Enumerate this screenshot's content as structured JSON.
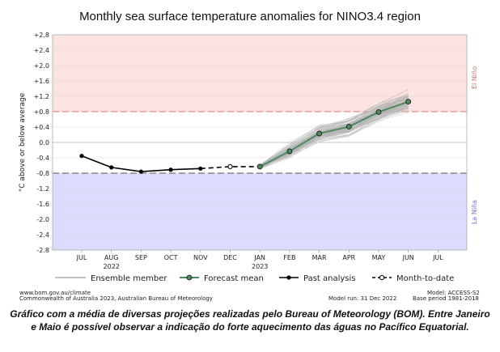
{
  "chart_data": {
    "type": "line",
    "title": "Monthly sea surface temperature anomalies for NINO3.4 region",
    "ylabel": "°C above or below average",
    "ylim": [
      -2.8,
      2.8
    ],
    "y_ticks": [
      "+2.8",
      "+2.4",
      "+2.0",
      "+1.6",
      "+1.2",
      "+0.8",
      "+0.4",
      "0.0",
      "-0.4",
      "-0.8",
      "-1.2",
      "-1.6",
      "-2.0",
      "-2.4",
      "-2.8"
    ],
    "x_ticks": [
      "JUL",
      "AUG",
      "SEP",
      "OCT",
      "NOV",
      "DEC",
      "JAN",
      "FEB",
      "MAR",
      "APR",
      "MAY",
      "JUN",
      "JUL"
    ],
    "x_year_labels": [
      {
        "month": "AUG",
        "label": "2022"
      },
      {
        "month": "JAN",
        "label": "2023"
      }
    ],
    "thresholds": {
      "el_nino": {
        "value": 0.8,
        "label": "El Niño",
        "color": "#fde2e2",
        "line_color": "#e07070"
      },
      "la_nina": {
        "value": -0.8,
        "label": "La Niña",
        "color": "#dcdcff",
        "line_color": "#555555"
      }
    },
    "series": [
      {
        "name": "Past analysis",
        "color": "#000000",
        "x": [
          "JUL",
          "AUG",
          "SEP",
          "OCT",
          "NOV"
        ],
        "values": [
          -0.35,
          -0.65,
          -0.76,
          -0.71,
          -0.68
        ]
      },
      {
        "name": "Month-to-date",
        "color": "#000000",
        "x": [
          "DEC"
        ],
        "values": [
          -0.63
        ]
      },
      {
        "name": "Forecast mean",
        "color": "#4e8a5e",
        "x": [
          "JAN",
          "FEB",
          "MAR",
          "APR",
          "MAY",
          "JUN"
        ],
        "values": [
          -0.63,
          -0.23,
          0.23,
          0.41,
          0.79,
          1.06
        ]
      },
      {
        "name": "Ensemble member",
        "color": "#b4b4b4",
        "x": [
          "JAN",
          "FEB",
          "MAR",
          "APR",
          "MAY",
          "JUN"
        ],
        "spread": [
          0.08,
          0.28,
          0.32,
          0.35,
          0.38,
          0.42
        ]
      }
    ],
    "legend": [
      "Ensemble member",
      "Forecast mean",
      "Past analysis",
      "Month-to-date"
    ]
  },
  "footer": {
    "left1": "www.bom.gov.au/climate",
    "left2": "Commonwealth of Australia 2023, Australian Bureau of Meteorology",
    "mid": "Model run: 31 Dec 2022",
    "right1": "Model: ACCESS-S2",
    "right2": "Base period 1981-2018"
  },
  "caption": {
    "line1": "Gráfico com a média de diversas projeções realizadas pelo Bureau of Meteorology (BOM). Entre Janeiro",
    "line2": "e Maio é possível observar a indicação do forte aquecimento das águas no Pacífico Equatorial."
  }
}
